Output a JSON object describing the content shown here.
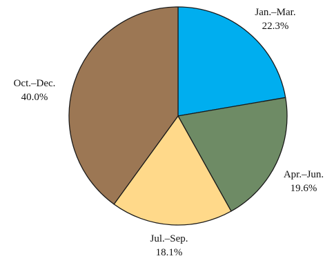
{
  "chart_data": {
    "type": "pie",
    "slices": [
      {
        "label": "Jan.–Mar.",
        "percent_text": "22.3%",
        "value": 22.3,
        "color": "#00AEEF"
      },
      {
        "label": "Apr.–Jun.",
        "percent_text": "19.6%",
        "value": 19.6,
        "color": "#6E8B65"
      },
      {
        "label": "Jul.–Sep.",
        "percent_text": "18.1%",
        "value": 18.1,
        "color": "#FFD98A"
      },
      {
        "label": "Oct.–Dec.",
        "percent_text": "40.0%",
        "value": 40.0,
        "color": "#9C7754"
      }
    ],
    "start_angle_deg": 0,
    "direction": "clockwise",
    "outline_color": "#1a1a1a"
  }
}
